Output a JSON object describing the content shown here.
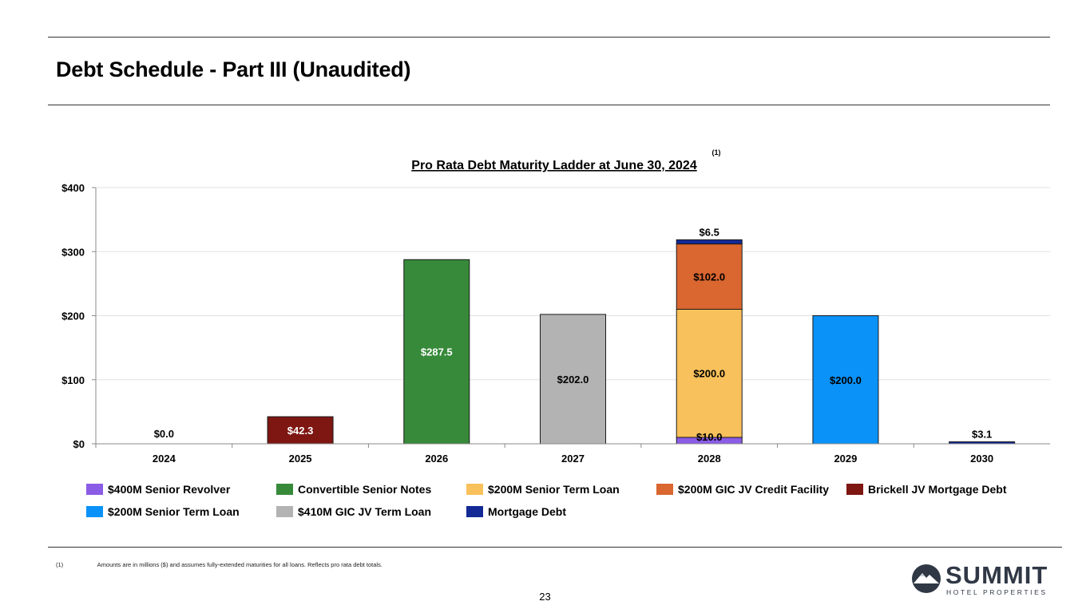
{
  "page": {
    "title": "Debt Schedule - Part III (Unaudited)",
    "page_number": "23",
    "footnote_marker": "(1)",
    "footnote_text": "Amounts are in millions ($) and assumes fully-extended maturities for all loans. Reflects pro rata debt totals.",
    "logo_word": "SUMMIT",
    "logo_sub": "HOTEL PROPERTIES"
  },
  "chart_data": {
    "type": "bar",
    "stacked": true,
    "title": "Pro Rata Debt Maturity Ladder at June 30, 2024",
    "title_superscript": "(1)",
    "categories": [
      "2024",
      "2025",
      "2026",
      "2027",
      "2028",
      "2029",
      "2030"
    ],
    "ylim": [
      0,
      400
    ],
    "yticks": [
      0,
      100,
      200,
      300,
      400
    ],
    "ytick_labels": [
      "$0",
      "$100",
      "$200",
      "$300",
      "$400"
    ],
    "grid": true,
    "legend_position": "bottom",
    "series": [
      {
        "name": "$400M Senior Revolver",
        "color": "#8B5CE6",
        "values": [
          0,
          0,
          0,
          0,
          10.0,
          0,
          0
        ]
      },
      {
        "name": "Convertible Senior Notes",
        "color": "#378A3A",
        "values": [
          0,
          0,
          287.5,
          0,
          0,
          0,
          0
        ]
      },
      {
        "name": "$200M Senior Term Loan",
        "color": "#F9C15B",
        "values": [
          0,
          0,
          0,
          0,
          200.0,
          0,
          0
        ]
      },
      {
        "name": "$200M GIC JV Credit Facility",
        "color": "#DA6630",
        "values": [
          0,
          0,
          0,
          0,
          102.0,
          0,
          0
        ]
      },
      {
        "name": "Brickell JV Mortgage Debt",
        "color": "#7E1612",
        "values": [
          0,
          42.3,
          0,
          0,
          0,
          0,
          0
        ]
      },
      {
        "name": "$200M Senior Term Loan",
        "color": "#0A92F8",
        "values": [
          0,
          0,
          0,
          0,
          0,
          200.0,
          0
        ]
      },
      {
        "name": "$410M GIC JV Term Loan",
        "color": "#B3B3B3",
        "values": [
          0,
          0,
          0,
          202.0,
          0,
          0,
          0
        ]
      },
      {
        "name": "Mortgage Debt",
        "color": "#132A96",
        "values": [
          0,
          0,
          0,
          0,
          6.5,
          0,
          3.1
        ]
      }
    ],
    "data_labels": [
      {
        "category": "2024",
        "series": "Mortgage Debt",
        "text": "$0.0",
        "color": "#000000",
        "position": "above"
      },
      {
        "category": "2025",
        "series": "Brickell JV Mortgage Debt",
        "text": "$42.3",
        "color": "#ffffff",
        "position": "inside"
      },
      {
        "category": "2026",
        "series": "Convertible Senior Notes",
        "text": "$287.5",
        "color": "#ffffff",
        "position": "inside"
      },
      {
        "category": "2027",
        "series": "$410M GIC JV Term Loan",
        "text": "$202.0",
        "color": "#000000",
        "position": "inside"
      },
      {
        "category": "2028",
        "series": "$400M Senior Revolver",
        "text": "$10.0",
        "color": "#000000",
        "position": "inside"
      },
      {
        "category": "2028",
        "series": "$200M Senior Term Loan",
        "text": "$200.0",
        "color": "#000000",
        "position": "inside"
      },
      {
        "category": "2028",
        "series": "$200M GIC JV Credit Facility",
        "text": "$102.0",
        "color": "#000000",
        "position": "inside"
      },
      {
        "category": "2028",
        "series": "Mortgage Debt",
        "text": "$6.5",
        "color": "#000000",
        "position": "above"
      },
      {
        "category": "2029",
        "series": "$200M Senior Term Loan (2029)",
        "text": "$200.0",
        "color": "#000000",
        "position": "inside"
      },
      {
        "category": "2030",
        "series": "Mortgage Debt",
        "text": "$3.1",
        "color": "#000000",
        "position": "above"
      }
    ]
  }
}
